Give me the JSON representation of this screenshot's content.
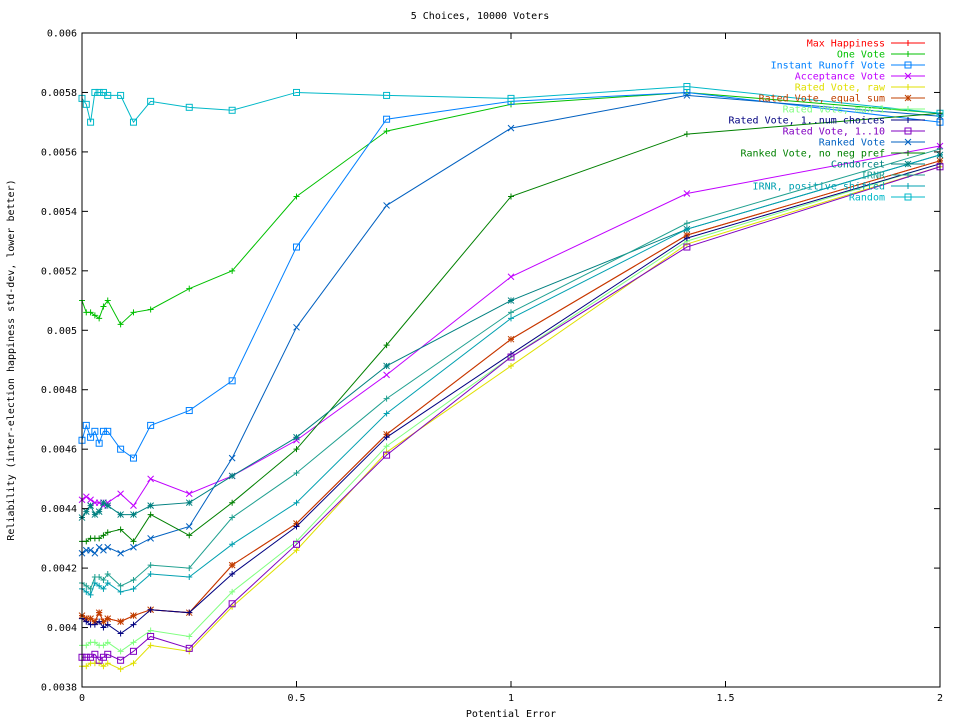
{
  "chart_data": {
    "type": "line",
    "title": "5 Choices, 10000 Voters",
    "xlabel": "Potential Error",
    "ylabel": "Reliability (inter-election happiness std-dev, lower better)",
    "xlim": [
      0,
      2
    ],
    "ylim": [
      0.0038,
      0.006
    ],
    "xticks": [
      {
        "value": 0,
        "label": "0"
      },
      {
        "value": 0.5,
        "label": "0.5"
      },
      {
        "value": 1,
        "label": "1"
      },
      {
        "value": 1.5,
        "label": "1.5"
      },
      {
        "value": 2,
        "label": "2"
      }
    ],
    "yticks": [
      {
        "value": 0.0038,
        "label": "0.0038"
      },
      {
        "value": 0.004,
        "label": "0.004"
      },
      {
        "value": 0.0042,
        "label": "0.0042"
      },
      {
        "value": 0.0044,
        "label": "0.0044"
      },
      {
        "value": 0.0046,
        "label": "0.0046"
      },
      {
        "value": 0.0048,
        "label": "0.0048"
      },
      {
        "value": 0.005,
        "label": "0.005"
      },
      {
        "value": 0.0052,
        "label": "0.0052"
      },
      {
        "value": 0.0054,
        "label": "0.0054"
      },
      {
        "value": 0.0056,
        "label": "0.0056"
      },
      {
        "value": 0.0058,
        "label": "0.0058"
      },
      {
        "value": 0.006,
        "label": "0.006"
      }
    ],
    "grid": false,
    "legend_position": "top-right",
    "x": [
      0,
      0.01,
      0.02,
      0.03,
      0.04,
      0.05,
      0.06,
      0.09,
      0.12,
      0.16,
      0.25,
      0.35,
      0.5,
      0.71,
      1,
      1.41,
      2
    ],
    "series": [
      {
        "name": "Max Happiness",
        "color": "#ff0000",
        "marker": "plus",
        "values": [
          0.00404,
          0.00403,
          0.00403,
          0.00402,
          0.00405,
          0.00402,
          0.00403,
          0.00402,
          0.00404,
          0.00406,
          0.00405,
          0.00421,
          0.00435,
          0.00465,
          0.00497,
          0.00532,
          0.00557
        ]
      },
      {
        "name": "One Vote",
        "color": "#00c000",
        "marker": "plus",
        "values": [
          0.0051,
          0.00506,
          0.00506,
          0.00505,
          0.00504,
          0.00508,
          0.0051,
          0.00502,
          0.00506,
          0.00507,
          0.00514,
          0.0052,
          0.00545,
          0.00567,
          0.00576,
          0.0058,
          0.00573
        ]
      },
      {
        "name": "Instant Runoff Vote",
        "color": "#0080ff",
        "marker": "square",
        "values": [
          0.00463,
          0.00468,
          0.00464,
          0.00466,
          0.00462,
          0.00466,
          0.00466,
          0.0046,
          0.00457,
          0.00468,
          0.00473,
          0.00483,
          0.00528,
          0.00571,
          0.00577,
          0.0058,
          0.0057
        ]
      },
      {
        "name": "Acceptance Vote",
        "color": "#c000ff",
        "marker": "x",
        "values": [
          0.00443,
          0.00444,
          0.00443,
          0.00442,
          0.00442,
          0.00441,
          0.00442,
          0.00445,
          0.00441,
          0.0045,
          0.00445,
          0.00451,
          0.00463,
          0.00485,
          0.00518,
          0.00546,
          0.00562
        ]
      },
      {
        "name": "Rated Vote, raw",
        "color": "#e0e000",
        "marker": "plus",
        "values": [
          0.00387,
          0.00387,
          0.00388,
          0.00388,
          0.00388,
          0.00387,
          0.00388,
          0.00386,
          0.00388,
          0.00394,
          0.00392,
          0.00407,
          0.00426,
          0.00459,
          0.00488,
          0.00529,
          0.00555
        ]
      },
      {
        "name": "Rated Vote, equal sum",
        "color": "#c04000",
        "marker": "star",
        "values": [
          0.00404,
          0.00403,
          0.00403,
          0.00402,
          0.00405,
          0.00402,
          0.00403,
          0.00402,
          0.00404,
          0.00406,
          0.00405,
          0.00421,
          0.00435,
          0.00465,
          0.00497,
          0.00532,
          0.00557
        ]
      },
      {
        "name": "Rated Vote, max=1",
        "color": "#80ff80",
        "marker": "plus",
        "values": [
          0.00394,
          0.00394,
          0.00395,
          0.00395,
          0.00394,
          0.00394,
          0.00395,
          0.00392,
          0.00395,
          0.00399,
          0.00397,
          0.00412,
          0.00429,
          0.00461,
          0.00491,
          0.0053,
          0.00556
        ]
      },
      {
        "name": "Rated Vote, 1..num choices",
        "color": "#000080",
        "marker": "plus",
        "values": [
          0.00403,
          0.00402,
          0.00401,
          0.00401,
          0.00402,
          0.004,
          0.00401,
          0.00398,
          0.00401,
          0.00406,
          0.00405,
          0.00418,
          0.00434,
          0.00464,
          0.00492,
          0.00531,
          0.00556
        ]
      },
      {
        "name": "Rated Vote, 1..10",
        "color": "#8000c0",
        "marker": "square",
        "values": [
          0.0039,
          0.0039,
          0.0039,
          0.00391,
          0.00389,
          0.0039,
          0.00391,
          0.00389,
          0.00392,
          0.00397,
          0.00393,
          0.00408,
          0.00428,
          0.00458,
          0.00491,
          0.00528,
          0.00555
        ]
      },
      {
        "name": "Ranked Vote",
        "color": "#0060c0",
        "marker": "x",
        "values": [
          0.00425,
          0.00426,
          0.00426,
          0.00425,
          0.00427,
          0.00426,
          0.00427,
          0.00425,
          0.00427,
          0.0043,
          0.00434,
          0.00457,
          0.00501,
          0.00542,
          0.00568,
          0.00579,
          0.00572
        ]
      },
      {
        "name": "Ranked Vote, no neg pref",
        "color": "#008000",
        "marker": "plus",
        "values": [
          0.00429,
          0.00429,
          0.0043,
          0.0043,
          0.0043,
          0.00431,
          0.00432,
          0.00433,
          0.00429,
          0.00438,
          0.00431,
          0.00442,
          0.0046,
          0.00495,
          0.00545,
          0.00566,
          0.00573
        ]
      },
      {
        "name": "Condorcet",
        "color": "#008080",
        "marker": "star",
        "values": [
          0.00437,
          0.00439,
          0.00441,
          0.00438,
          0.00439,
          0.00442,
          0.00441,
          0.00438,
          0.00438,
          0.00441,
          0.00442,
          0.00451,
          0.00464,
          0.00488,
          0.0051,
          0.00534,
          0.00559
        ]
      },
      {
        "name": "IRNR",
        "color": "#20a090",
        "marker": "plus",
        "values": [
          0.00415,
          0.00414,
          0.00413,
          0.00417,
          0.00417,
          0.00416,
          0.00418,
          0.00414,
          0.00416,
          0.00421,
          0.0042,
          0.00437,
          0.00452,
          0.00477,
          0.00506,
          0.00536,
          0.00561
        ]
      },
      {
        "name": "IRNR, positive shifted",
        "color": "#00a0b0",
        "marker": "plus",
        "values": [
          0.00413,
          0.00412,
          0.00411,
          0.00415,
          0.00414,
          0.00413,
          0.00415,
          0.00412,
          0.00413,
          0.00418,
          0.00417,
          0.00428,
          0.00442,
          0.00472,
          0.00504,
          0.00534,
          0.00559
        ]
      },
      {
        "name": "Random",
        "color": "#00b8c8",
        "marker": "square",
        "values": [
          0.00578,
          0.00576,
          0.0057,
          0.0058,
          0.0058,
          0.0058,
          0.00579,
          0.00579,
          0.0057,
          0.00577,
          0.00575,
          0.00574,
          0.0058,
          0.00579,
          0.00578,
          0.00582,
          0.00573
        ]
      }
    ]
  }
}
